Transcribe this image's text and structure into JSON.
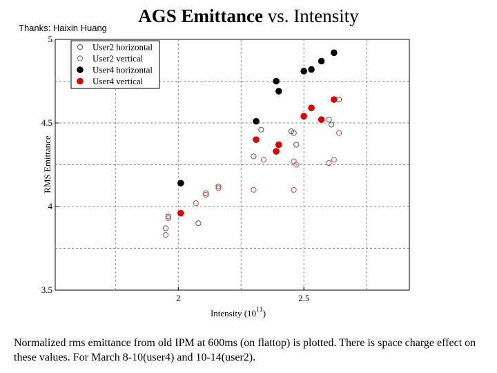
{
  "header": {
    "title_bold": "AGS Emittance",
    "title_rest": "vs. Intensity",
    "thanks": "Thanks: Haixin Huang"
  },
  "caption": "Normalized rms emittance  from old IPM at 600ms (on flattop) is plotted. There is space charge effect on these values. For March 8-10(user4) and 10-14(user2).",
  "colors": {
    "black": "#000000",
    "red": "#e00000",
    "open_black": "#555555",
    "open_red": "#e04040",
    "grid": "#888888"
  },
  "chart_data": {
    "type": "scatter",
    "title": "AGS Emittance vs. Intensity",
    "xlabel": "Intensity (10",
    "xlabel_sup": "11",
    "xlabel_end": ")",
    "ylabel": "RMS Emittance",
    "xlim": [
      1.51,
      2.92
    ],
    "ylim": [
      3.5,
      5.0
    ],
    "x_ticks": [
      2.0,
      2.5
    ],
    "x_tick_labels": [
      "2",
      "2.5"
    ],
    "y_ticks": [
      3.5,
      4.0,
      4.5,
      5.0
    ],
    "y_tick_labels": [
      "3.5",
      "4",
      "4.5",
      "5"
    ],
    "grid": true,
    "legend_position": "top-left",
    "series": [
      {
        "name": "User2 horizontal",
        "marker": "open",
        "color": "#555555",
        "points": [
          [
            1.95,
            3.87
          ],
          [
            1.96,
            3.94
          ],
          [
            2.08,
            3.9
          ],
          [
            2.11,
            4.08
          ],
          [
            2.16,
            4.12
          ],
          [
            2.3,
            4.3
          ],
          [
            2.33,
            4.46
          ],
          [
            2.45,
            4.45
          ],
          [
            2.46,
            4.44
          ],
          [
            2.47,
            4.37
          ],
          [
            2.6,
            4.52
          ],
          [
            2.61,
            4.49
          ],
          [
            2.64,
            4.64
          ]
        ]
      },
      {
        "name": "User2 vertical",
        "marker": "open",
        "color": "#e04040",
        "points": [
          [
            1.95,
            3.83
          ],
          [
            1.96,
            3.93
          ],
          [
            2.07,
            4.02
          ],
          [
            2.11,
            4.07
          ],
          [
            2.16,
            4.11
          ],
          [
            2.3,
            4.1
          ],
          [
            2.34,
            4.28
          ],
          [
            2.46,
            4.27
          ],
          [
            2.47,
            4.25
          ],
          [
            2.46,
            4.1
          ],
          [
            2.6,
            4.26
          ],
          [
            2.62,
            4.28
          ],
          [
            2.64,
            4.44
          ]
        ]
      },
      {
        "name": "User4 horizontal",
        "marker": "filled",
        "color": "#000000",
        "points": [
          [
            2.01,
            4.14
          ],
          [
            2.31,
            4.51
          ],
          [
            2.39,
            4.75
          ],
          [
            2.4,
            4.69
          ],
          [
            2.5,
            4.81
          ],
          [
            2.53,
            4.82
          ],
          [
            2.57,
            4.87
          ],
          [
            2.62,
            4.92
          ]
        ]
      },
      {
        "name": "User4 vertical",
        "marker": "filled",
        "color": "#e00000",
        "points": [
          [
            2.01,
            3.96
          ],
          [
            2.31,
            4.4
          ],
          [
            2.39,
            4.33
          ],
          [
            2.4,
            4.37
          ],
          [
            2.5,
            4.54
          ],
          [
            2.53,
            4.59
          ],
          [
            2.57,
            4.52
          ],
          [
            2.62,
            4.64
          ]
        ]
      }
    ]
  }
}
